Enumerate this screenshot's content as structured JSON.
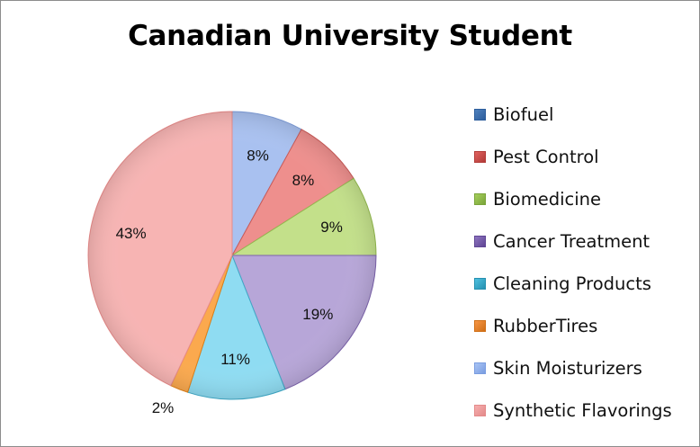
{
  "chart_data": {
    "type": "pie",
    "title": "Canadian University Student",
    "categories": [
      "Biofuel",
      "Pest Control",
      "Biomedicine",
      "Cancer Treatment",
      "Cleaning Products",
      "RubberTires",
      "Skin Moisturizers",
      "Synthetic Flavorings"
    ],
    "values": [
      0,
      8,
      9,
      19,
      11,
      2,
      8,
      43
    ],
    "slices": [
      {
        "label": "Skin Moisturizers",
        "value": 8,
        "data_label": "8%",
        "color": "#a9c1f0",
        "edge": "#7f9ed9"
      },
      {
        "label": "Pest Control",
        "value": 8,
        "data_label": "8%",
        "color": "#ee8f8d",
        "edge": "#c95a57"
      },
      {
        "label": "Biomedicine",
        "value": 9,
        "data_label": "9%",
        "color": "#c3e08a",
        "edge": "#93b94f"
      },
      {
        "label": "Cancer Treatment",
        "value": 19,
        "data_label": "19%",
        "color": "#b7a6d8",
        "edge": "#7c63ad"
      },
      {
        "label": "Cleaning Products",
        "value": 11,
        "data_label": "11%",
        "color": "#8fdcf2",
        "edge": "#3fa9c7"
      },
      {
        "label": "RubberTires",
        "value": 2,
        "data_label": "2%",
        "color": "#fba94e",
        "edge": "#e07f16"
      },
      {
        "label": "Synthetic Flavorings",
        "value": 43,
        "data_label": "43%",
        "color": "#f7b4b3",
        "edge": "#e78b8a"
      }
    ],
    "legend": {
      "placement": "right",
      "entries": [
        {
          "label": "Biofuel",
          "color": "#4f81bd",
          "edge": "#2c5d9c"
        },
        {
          "label": "Pest Control",
          "color": "#e0625f",
          "edge": "#b23b38"
        },
        {
          "label": "Biomedicine",
          "color": "#a6cf5b",
          "edge": "#7aa43a"
        },
        {
          "label": "Cancer Treatment",
          "color": "#8e74c0",
          "edge": "#5f4694"
        },
        {
          "label": "Cleaning Products",
          "color": "#4fc1e0",
          "edge": "#2590b0"
        },
        {
          "label": "RubberTires",
          "color": "#f79646",
          "edge": "#d06f16"
        },
        {
          "label": "Skin Moisturizers",
          "color": "#a9c4f5",
          "edge": "#7a9de0"
        },
        {
          "label": "Synthetic Flavorings",
          "color": "#f6aeae",
          "edge": "#e38a8a"
        }
      ]
    }
  }
}
